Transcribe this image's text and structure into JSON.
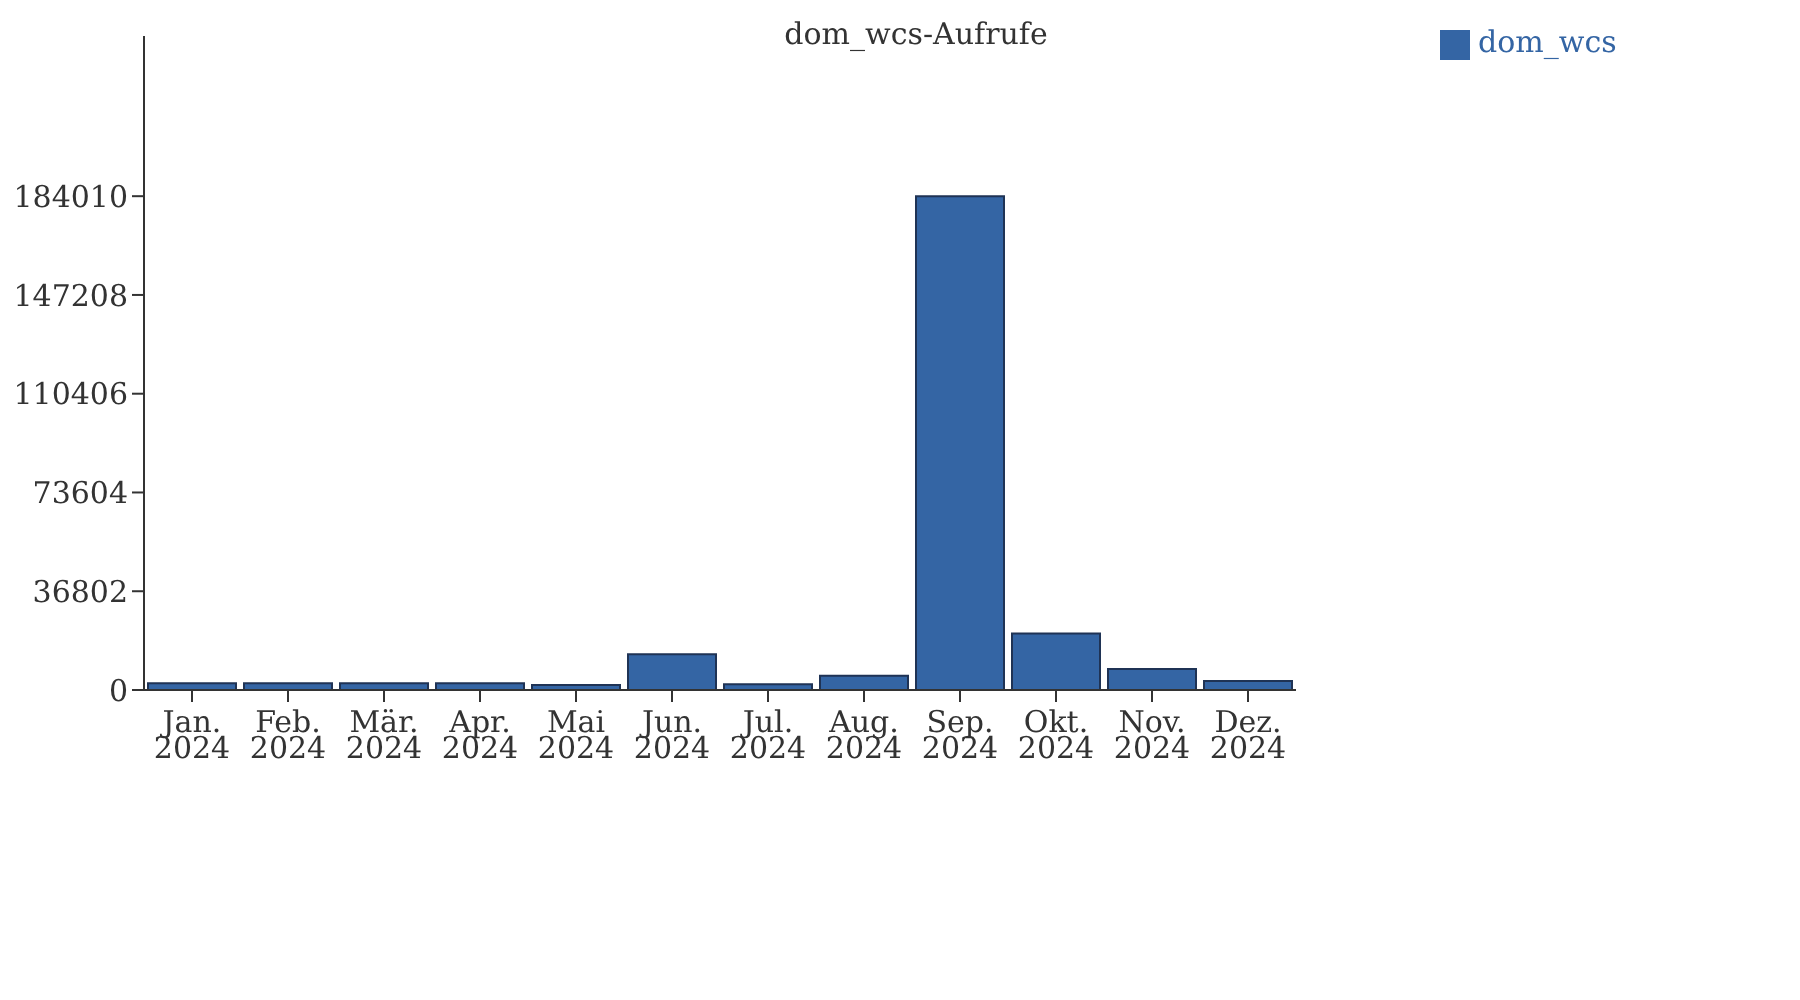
{
  "chart_data": {
    "type": "bar",
    "title": "dom_wcs-Aufrufe",
    "categories": [
      "Jan. 2024",
      "Feb. 2024",
      "Mär. 2024",
      "Apr. 2024",
      "Mai 2024",
      "Jun. 2024",
      "Jul. 2024",
      "Aug. 2024",
      "Sep. 2024",
      "Okt. 2024",
      "Nov. 2024",
      "Dez. 2024"
    ],
    "series": [
      {
        "name": "dom_wcs",
        "color": "#3465a4",
        "values": [
          2500,
          2500,
          2500,
          2500,
          1900,
          13300,
          2100,
          5300,
          184000,
          21100,
          7800,
          3400
        ]
      }
    ],
    "ylim": [
      0,
      243700
    ],
    "yticks": [
      0,
      36802,
      73604,
      110406,
      147208,
      184010
    ],
    "grid": false,
    "legend": "top right"
  }
}
